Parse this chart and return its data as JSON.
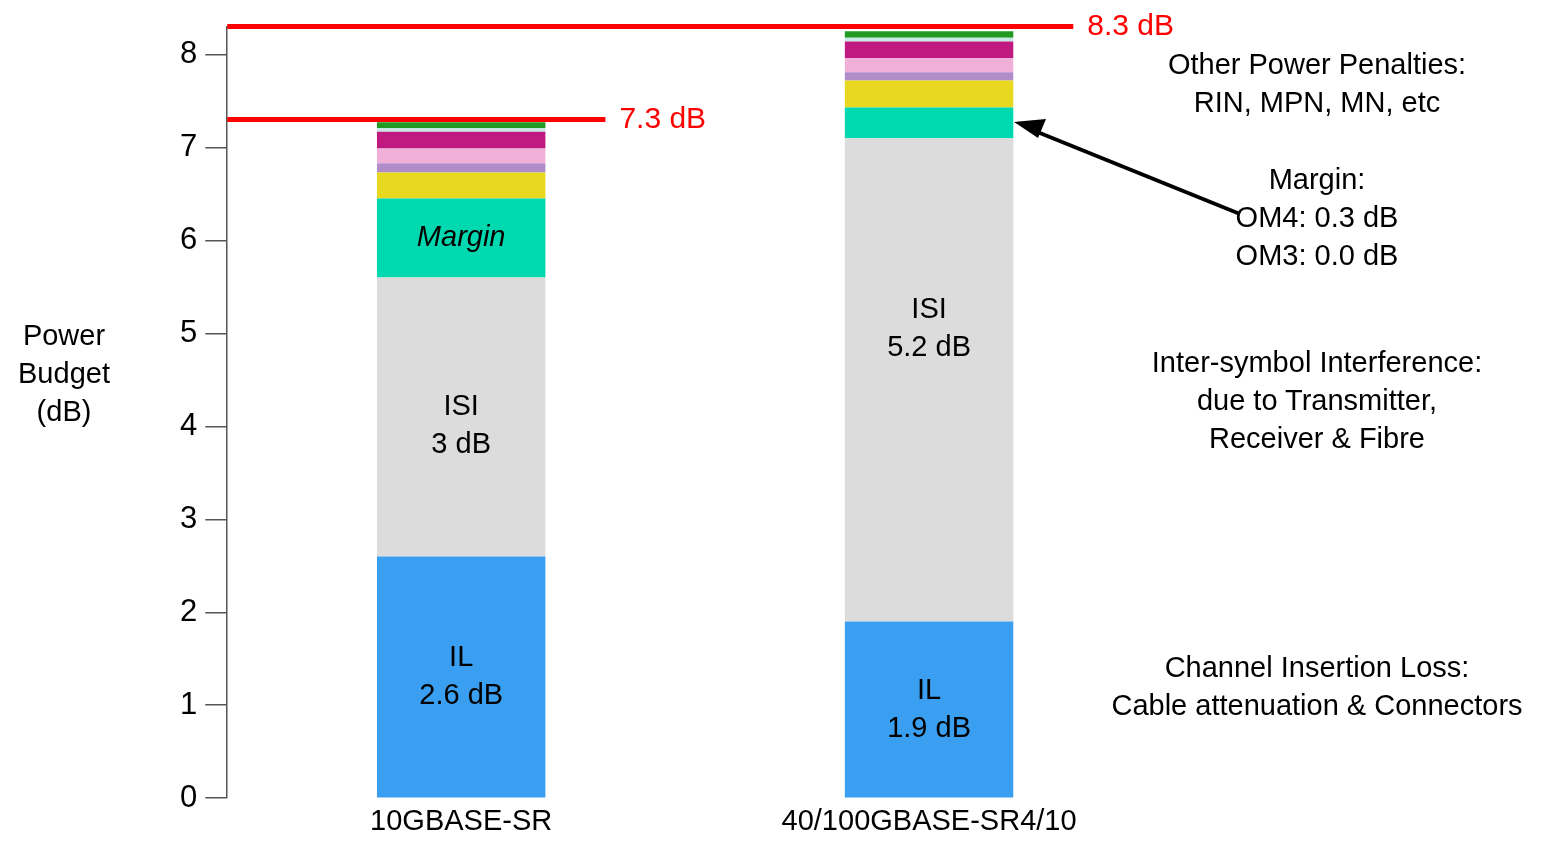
{
  "chart_data": {
    "type": "bar",
    "stacked": true,
    "ylabel": "Power Budget (dB)",
    "categories": [
      "10GBASE-SR",
      "40/100GBASE-SR4/10"
    ],
    "series": [
      {
        "color": "#3a9ff0",
        "values": [
          2.6,
          1.9
        ]
      },
      {
        "color": "#dcdcdc",
        "values": [
          3,
          5.2
        ]
      },
      {
        "color": "#00d8b0",
        "values": [
          0.85,
          0.33
        ]
      },
      {
        "color": "#e8d820",
        "values": [
          0.28,
          0.29
        ]
      },
      {
        "color": "#b08cc8",
        "values": [
          0.1,
          0.09
        ]
      },
      {
        "color": "#f0b0d8",
        "values": [
          0.16,
          0.15
        ]
      },
      {
        "color": "#c01a80",
        "values": [
          0.18,
          0.18
        ]
      },
      {
        "color": "#c8e8e8",
        "values": [
          0.04,
          0.04
        ]
      },
      {
        "color": "#229a22",
        "values": [
          0.06,
          0.07
        ]
      }
    ],
    "ylim": [
      0,
      8.3
    ],
    "yticks": [
      0,
      1,
      2,
      3,
      4,
      5,
      6,
      7,
      8
    ],
    "legend": false,
    "grid": false,
    "ref_lines": [
      {
        "axis": "y",
        "value": 7.3,
        "label": "7.3 dB",
        "color": "#ff0000"
      },
      {
        "axis": "y",
        "value": 8.3,
        "label": "8.3 dB",
        "color": "#ff0000"
      }
    ],
    "annotations": [
      "Margin",
      "ISI\n3 dB",
      "IL\n2.6 dB",
      "ISI\n5.2 dB",
      "IL\n1.9 dB",
      "Other Power Penalties:\nRIN, MPN, MN, etc",
      "Margin:\nOM4: 0.3 dB\nOM3: 0.0 dB",
      "Inter-symbol Interference:\ndue to Transmitter,\nReceiver & Fibre",
      "Channel Insertion Loss:\nCable attenuation & Connectors"
    ]
  }
}
